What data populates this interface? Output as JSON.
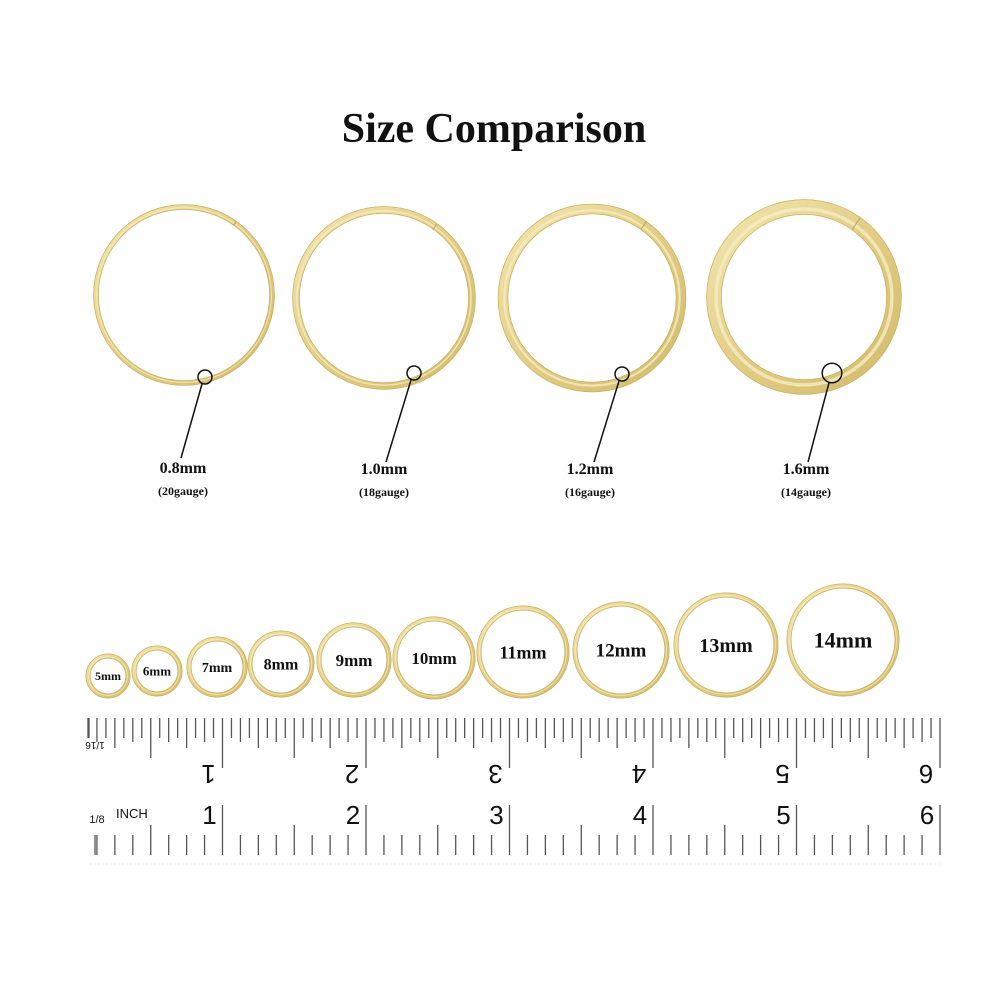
{
  "title": "Size Comparison",
  "colors": {
    "gold": "#e3cf85",
    "gold_light": "#f6ecc0",
    "gold_dark": "#c9b160",
    "ruler": "#555555"
  },
  "thickness_rings": [
    {
      "label": "0.8mm",
      "gauge": "(20gauge)"
    },
    {
      "label": "1.0mm",
      "gauge": "(18gauge)"
    },
    {
      "label": "1.2mm",
      "gauge": "(16gauge)"
    },
    {
      "label": "1.6mm",
      "gauge": "(14gauge)"
    }
  ],
  "diameter_rings": [
    "5mm",
    "6mm",
    "7mm",
    "8mm",
    "9mm",
    "10mm",
    "11mm",
    "12mm",
    "13mm",
    "14mm"
  ],
  "ruler": {
    "top_fraction": "1/16",
    "bottom_fraction": "1/8",
    "unit": "INCH",
    "numbers": [
      "1",
      "2",
      "3",
      "4",
      "5",
      "6"
    ]
  }
}
